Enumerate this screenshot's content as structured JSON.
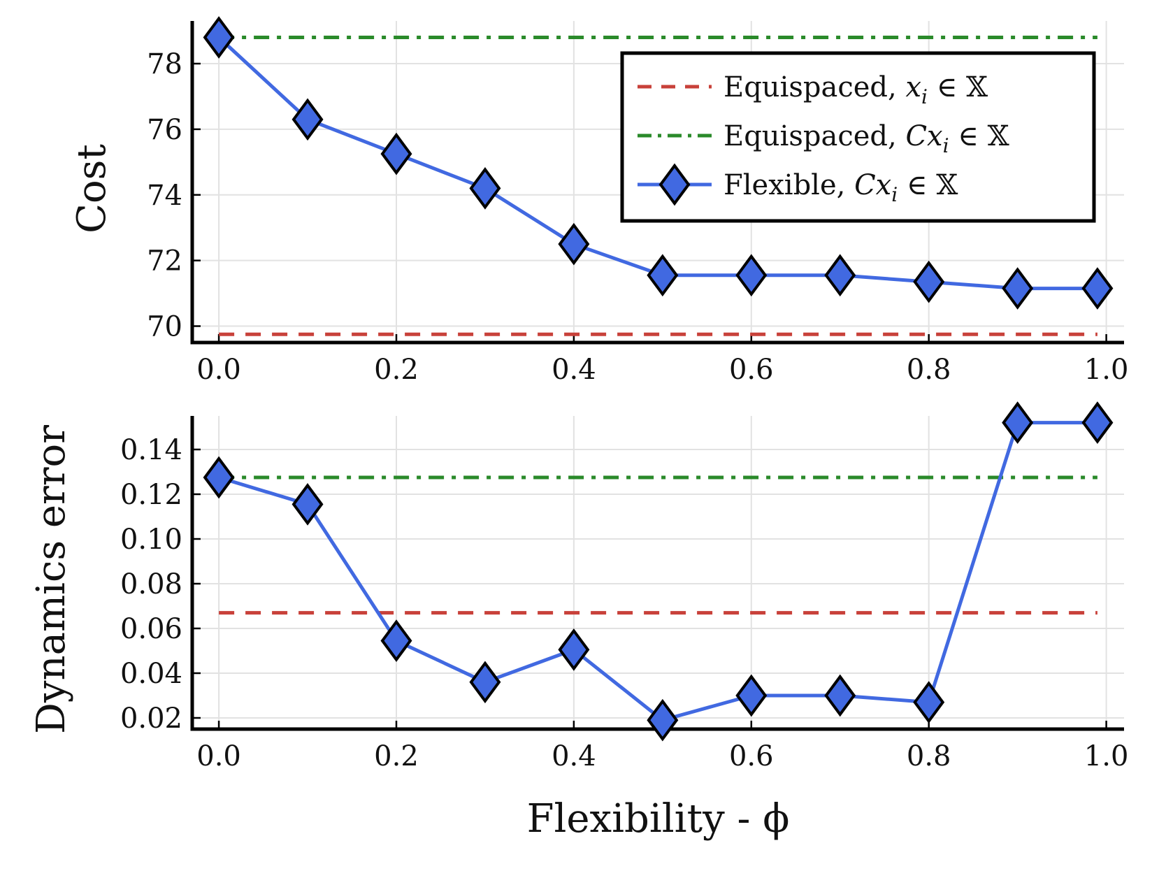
{
  "chart_data": [
    {
      "type": "line",
      "xlabel": "",
      "ylabel": "Cost",
      "xlim": [
        -0.03,
        1.02
      ],
      "ylim": [
        69.5,
        79.3
      ],
      "x_ticks": [
        0.0,
        0.2,
        0.4,
        0.6,
        0.8,
        1.0
      ],
      "x_tick_labels": [
        "0.0",
        "0.2",
        "0.4",
        "0.6",
        "0.8",
        "1.0"
      ],
      "y_ticks": [
        70,
        72,
        74,
        76,
        78
      ],
      "y_tick_labels": [
        "70",
        "72",
        "74",
        "76",
        "78"
      ],
      "grid": true,
      "legend_position": "top-right",
      "series": [
        {
          "name": "Equispaced, x_i ∈ 𝕏",
          "label_text": "Equispaced, ",
          "label_math": "x",
          "label_sub": "i",
          "label_tail": " ∈ 𝕏",
          "style": "dashed",
          "color": "#c8413a",
          "x": [
            0.0,
            0.99
          ],
          "values": [
            69.75,
            69.75
          ]
        },
        {
          "name": "Equispaced, Cx_i ∈ 𝕏",
          "label_text": "Equispaced, ",
          "label_math": "Cx",
          "label_sub": "i",
          "label_tail": " ∈ 𝕏",
          "style": "dashdot",
          "color": "#2a8a2a",
          "x": [
            0.0,
            0.99
          ],
          "values": [
            78.8,
            78.8
          ]
        },
        {
          "name": "Flexible, Cx_i ∈ 𝕏",
          "label_text": "Flexible, ",
          "label_math": "Cx",
          "label_sub": "i",
          "label_tail": " ∈ 𝕏",
          "style": "solid-diamond",
          "color": "#4169e1",
          "x": [
            0.0,
            0.1,
            0.2,
            0.3,
            0.4,
            0.5,
            0.6,
            0.7,
            0.8,
            0.9,
            0.99
          ],
          "values": [
            78.8,
            76.3,
            75.25,
            74.2,
            72.5,
            71.55,
            71.55,
            71.55,
            71.35,
            71.15,
            71.15
          ]
        }
      ]
    },
    {
      "type": "line",
      "xlabel": "Flexibility - ϕ",
      "ylabel": "Dynamics error",
      "xlim": [
        -0.03,
        1.02
      ],
      "ylim": [
        0.015,
        0.155
      ],
      "x_ticks": [
        0.0,
        0.2,
        0.4,
        0.6,
        0.8,
        1.0
      ],
      "x_tick_labels": [
        "0.0",
        "0.2",
        "0.4",
        "0.6",
        "0.8",
        "1.0"
      ],
      "y_ticks": [
        0.02,
        0.04,
        0.06,
        0.08,
        0.1,
        0.12,
        0.14
      ],
      "y_tick_labels": [
        "0.02",
        "0.04",
        "0.06",
        "0.08",
        "0.10",
        "0.12",
        "0.14"
      ],
      "grid": true,
      "series": [
        {
          "name": "Equispaced, x_i ∈ 𝕏",
          "style": "dashed",
          "color": "#c8413a",
          "x": [
            0.0,
            0.99
          ],
          "values": [
            0.067,
            0.067
          ]
        },
        {
          "name": "Equispaced, Cx_i ∈ 𝕏",
          "style": "dashdot",
          "color": "#2a8a2a",
          "x": [
            0.0,
            0.99
          ],
          "values": [
            0.1275,
            0.1275
          ]
        },
        {
          "name": "Flexible, Cx_i ∈ 𝕏",
          "style": "solid-diamond",
          "color": "#4169e1",
          "x": [
            0.0,
            0.1,
            0.2,
            0.3,
            0.4,
            0.5,
            0.6,
            0.7,
            0.8,
            0.9,
            0.99
          ],
          "values": [
            0.1275,
            0.1155,
            0.0545,
            0.036,
            0.0505,
            0.019,
            0.03,
            0.03,
            0.027,
            0.152,
            0.152
          ]
        }
      ]
    }
  ]
}
